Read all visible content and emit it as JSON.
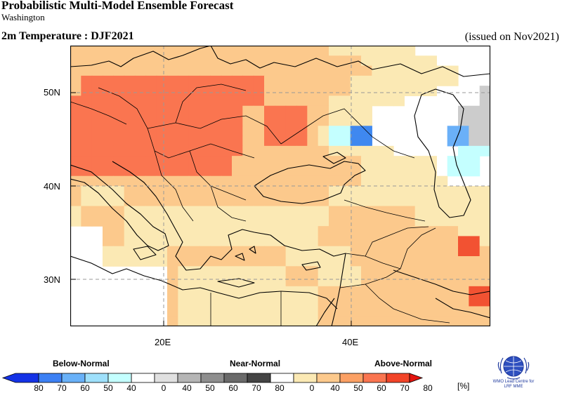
{
  "header": {
    "title": "Probabilistic Multi-Model Ensemble Forecast",
    "subtitle": "Washington",
    "variable": "2m Temperature : DJF2021",
    "issued": "(issued on Nov2021)"
  },
  "map": {
    "lat_labels": [
      "50N",
      "40N",
      "30N"
    ],
    "lon_labels": [
      "20E",
      "40E"
    ],
    "lon_range": [
      10,
      55
    ],
    "lat_range": [
      25,
      55
    ],
    "gridlines": "dashed",
    "cell_colors": {
      "A": "#fbe9b4",
      "B": "#fcc98c",
      "C": "#fa7550",
      "D": "#c4ffff",
      "E": "#3f88f0",
      "F": "#6ab0f8",
      "G": "#cccccc",
      "H": "#aaaaaa",
      "R": "#f25232",
      "W": "#ffffff",
      "N": "#ffffff"
    },
    "grid_rows": [
      "BBBBBBBBBBBBBBBBBBBBBBBBAAAAAAAANNWWWWW",
      "BBBBBBBBBBBBBBBBBBBBBBBBBBBAAAAAAAWWWWW",
      "BBBBBBBBBBBBBBBBBBBBBBBBBBBBAAAAAAAAWWW",
      "BCCCCCCCCCCCCCCCCCBBBBBBBBAAAAAAAAAAWWW",
      "BCCCCCCCCCCCCCCCCCBBBBBBBBAAAAAAAAWWWWG",
      "CCCCCCCCCCCCCCCCCCBBBBBBAAAAAAAWWWWWWWG",
      "CCCCCCCCCCCCCCCCBBCCCCBBAAAAWWWWWWWWGGG",
      "CCCCCCCCCCCCCCCCBBCCCCBBAAAAWWWWWWWWGGG",
      "CCCCCCCCCCCCCCCCBBCCCCBADDEEWWWWWWWFFGG",
      "CCCCCCCCCCCCCCCCBBCCCCBADDEEWWWWWWWFFGG",
      "CCCCCCCCCCCCCCCCBBBBBBBBAAAAAAWWWWWWDDDG",
      "CCCCCCCCCCCCCCCBBBBBBBBBBBBAAAAAAAWDDDW",
      "CCCCCCCCCCCCCCCBBBBBBBBBBBBAAAAAAAWDDDW",
      "BBBBBBBBBBBBBBBBBBBBBBBBBBBAAAAAAAAWWWW",
      "BAAAABBBBBBBBBBBBBBBBBBBAAAAAAAAAAAAAAA",
      "BAAAABBBBBBBBBBBBBBBBBBBAAAAAAAAAAAAAAA",
      "ABBBBAAAAAAAAAAAAAAAAAAABBBBBBBBAAAAAAA",
      "ABBBBAAAAAAAAAAAAAAAAAAABBBBBBBBAAAAAAA",
      "WWWBBAAAAAAAAAAAAAAAAAABBBBBBBBBBBBBAAA",
      "WWWBBAAAAAAAAAAAAAAAAAABBBBBBBBBBBBBRRA",
      "WWWAAAAAABBBBBBBBBBBAAAAAABBBBBBBBBBRRB",
      "WWWAAAAAABBBBBBBBBBBAAAAAABBBBBBBBBBBBB",
      "WWWWWWWWWBAAAAAAAAAABBBAAAABBBBBBBBBBBB",
      "WWWWWWWWWBAAAAAAAAAABBBAAAABBBBBBBBBBBB",
      "WWWWWWWWWBAAAAAAAAAAAAABBBBBBBBBBBBBBRR",
      "WWWWWWWWWBAAAAAAAAAAAAABBBBBBBBBBBBBBRR",
      "WWWWWWWWWBAAAAAAAAAAAAABBBBBBBBBBBBBBBB",
      "WWWWWWWWWBAAAAAAAAAAAAABBBBBBBBBBBBBBBB"
    ]
  },
  "legend": {
    "below_label": "Below-Normal",
    "near_label": "Near-Normal",
    "above_label": "Above-Normal",
    "unit": "[%]",
    "below_ticks": [
      "80",
      "70",
      "60",
      "50",
      "40"
    ],
    "near_ticks": [
      "0",
      "40",
      "50",
      "60",
      "70",
      "80"
    ],
    "above_ticks": [
      "0",
      "40",
      "50",
      "60",
      "70",
      "80"
    ],
    "below_colors": [
      "#1432e6",
      "#3c80f4",
      "#69b1f8",
      "#9ee0fb",
      "#c4ffff"
    ],
    "near_colors": [
      "#e0e0e0",
      "#b5b5b5",
      "#8e8e8e",
      "#6a6a6a",
      "#444444"
    ],
    "above_colors": [
      "#fbe9b4",
      "#fcc98c",
      "#fba064",
      "#fa7550",
      "#f24428",
      "#e3140f"
    ]
  },
  "logo": {
    "caption_line1": "WMO Lead Centre for",
    "caption_line2": "LRF MME"
  }
}
